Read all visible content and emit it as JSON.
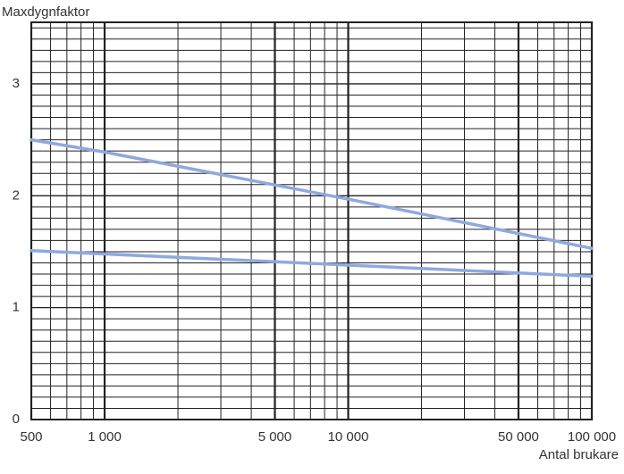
{
  "chart_data": {
    "type": "line",
    "y_axis_label": "Maxdygnfaktor",
    "x_axis_label": "Antal brukare",
    "log_x": true,
    "x": [
      500,
      1000,
      10000,
      100000
    ],
    "series": [
      {
        "color": "#8ea9dd",
        "values": [
          2.5,
          2.39,
          1.97,
          1.53
        ]
      },
      {
        "color": "#8ea9dd",
        "values": [
          1.51,
          1.48,
          1.38,
          1.28
        ]
      }
    ],
    "xlim": [
      500,
      100000
    ],
    "xticks": [
      500,
      {
        "value": 1000,
        "label": "1 000"
      },
      {
        "value": 5000,
        "label": "5 000"
      },
      {
        "value": 10000,
        "label": "10 000"
      },
      {
        "value": 50000,
        "label": "50 000"
      },
      {
        "value": 100000,
        "label": "100 000"
      }
    ],
    "x_minor_ticks": [
      600,
      700,
      800,
      900,
      2000,
      3000,
      4000,
      6000,
      7000,
      8000,
      9000,
      20000,
      30000,
      40000,
      60000,
      70000,
      80000,
      90000
    ],
    "ylim": [
      0,
      3.55
    ],
    "yticks": [
      0,
      1,
      2,
      3
    ],
    "y_minor_ticks": [
      0.1,
      0.2,
      0.3,
      0.4,
      0.5,
      0.6,
      0.7,
      0.8,
      0.9,
      1.1,
      1.2,
      1.3,
      1.4,
      1.5,
      1.6,
      1.7,
      1.8,
      1.9,
      2.1,
      2.2,
      2.3,
      2.4,
      2.5,
      2.6,
      2.7,
      2.8,
      2.9,
      3.1,
      3.2,
      3.3,
      3.4,
      3.5
    ],
    "grid": true
  }
}
